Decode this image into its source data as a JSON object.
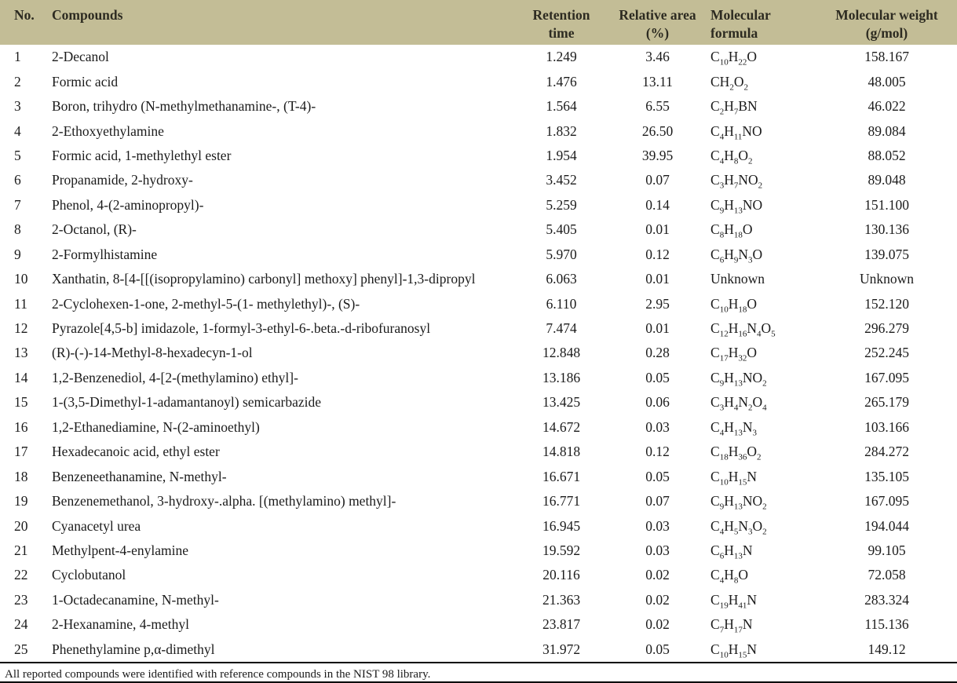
{
  "colors": {
    "header_background": "#c3bd96",
    "header_text": "#2d2b21",
    "body_text": "#1b1b1b",
    "rule": "#000000"
  },
  "footnote": "All reported compounds were identified with reference compounds in the NIST 98 library.",
  "table": {
    "columns": [
      {
        "key": "no",
        "label": "No.",
        "label_lines": [
          "No."
        ]
      },
      {
        "key": "compound",
        "label": "Compounds",
        "label_lines": [
          "Compounds"
        ]
      },
      {
        "key": "retention-time",
        "label": "Retention time",
        "label_lines": [
          "Retention",
          "time"
        ]
      },
      {
        "key": "relative-area",
        "label": "Relative area (%)",
        "label_lines": [
          "Relative area",
          "(%)"
        ]
      },
      {
        "key": "molecular-formula",
        "label": "Molecular formula",
        "label_lines": [
          "Molecular",
          "formula"
        ]
      },
      {
        "key": "molecular-weight",
        "label": "Molecular weight (g/mol)",
        "label_lines": [
          "Molecular weight",
          "(g/mol)"
        ]
      }
    ],
    "rows": [
      {
        "no": "1",
        "compound": "2-Decanol",
        "retention_time": "1.249",
        "relative_area": "3.46",
        "molecular_formula": "C10H22O",
        "molecular_weight": "158.167"
      },
      {
        "no": "2",
        "compound": "Formic acid",
        "retention_time": "1.476",
        "relative_area": "13.11",
        "molecular_formula": "CH2O2",
        "molecular_weight": "48.005"
      },
      {
        "no": "3",
        "compound": "Boron, trihydro (N-methylmethanamine-, (T-4)-",
        "retention_time": "1.564",
        "relative_area": "6.55",
        "molecular_formula": "C2H7BN",
        "molecular_weight": "46.022"
      },
      {
        "no": "4",
        "compound": "2-Ethoxyethylamine",
        "retention_time": "1.832",
        "relative_area": "26.50",
        "molecular_formula": "C4H11NO",
        "molecular_weight": "89.084"
      },
      {
        "no": "5",
        "compound": "Formic acid, 1-methylethyl ester",
        "retention_time": "1.954",
        "relative_area": "39.95",
        "molecular_formula": "C4H8O2",
        "molecular_weight": "88.052"
      },
      {
        "no": "6",
        "compound": "Propanamide, 2-hydroxy-",
        "retention_time": "3.452",
        "relative_area": "0.07",
        "molecular_formula": "C3H7NO2",
        "molecular_weight": "89.048"
      },
      {
        "no": "7",
        "compound": "Phenol, 4-(2-aminopropyl)-",
        "retention_time": "5.259",
        "relative_area": "0.14",
        "molecular_formula": "C9H13NO",
        "molecular_weight": "151.100"
      },
      {
        "no": "8",
        "compound": "2-Octanol, (R)-",
        "retention_time": "5.405",
        "relative_area": "0.01",
        "molecular_formula": "C8H18O",
        "molecular_weight": "130.136"
      },
      {
        "no": "9",
        "compound": "2-Formylhistamine",
        "retention_time": "5.970",
        "relative_area": "0.12",
        "molecular_formula": "C6H9N3O",
        "molecular_weight": "139.075"
      },
      {
        "no": "10",
        "compound": "Xanthatin, 8-[4-[[(isopropylamino) carbonyl] methoxy] phenyl]-1,3-dipropyl",
        "retention_time": "6.063",
        "relative_area": "0.01",
        "molecular_formula": "Unknown",
        "molecular_weight": "Unknown"
      },
      {
        "no": "11",
        "compound": "2-Cyclohexen-1-one, 2-methyl-5-(1- methylethyl)-, (S)-",
        "retention_time": "6.110",
        "relative_area": "2.95",
        "molecular_formula": "C10H18O",
        "molecular_weight": "152.120"
      },
      {
        "no": "12",
        "compound": "Pyrazole[4,5-b] imidazole, 1-formyl-3-ethyl-6-.beta.-d-ribofuranosyl",
        "retention_time": "7.474",
        "relative_area": "0.01",
        "molecular_formula": "C12H16N4O5",
        "molecular_weight": "296.279"
      },
      {
        "no": "13",
        "compound": "(R)-(-)-14-Methyl-8-hexadecyn-1-ol",
        "retention_time": "12.848",
        "relative_area": "0.28",
        "molecular_formula": "C17H32O",
        "molecular_weight": "252.245"
      },
      {
        "no": "14",
        "compound": "1,2-Benzenediol, 4-[2-(methylamino) ethyl]-",
        "retention_time": "13.186",
        "relative_area": "0.05",
        "molecular_formula": "C9H13NO2",
        "molecular_weight": "167.095"
      },
      {
        "no": "15",
        "compound": "1-(3,5-Dimethyl-1-adamantanoyl) semicarbazide",
        "retention_time": "13.425",
        "relative_area": "0.06",
        "molecular_formula": "C3H4N2O4",
        "molecular_weight": "265.179"
      },
      {
        "no": "16",
        "compound": "1,2-Ethanediamine, N-(2-aminoethyl)",
        "retention_time": "14.672",
        "relative_area": "0.03",
        "molecular_formula": "C4H13N3",
        "molecular_weight": "103.166"
      },
      {
        "no": "17",
        "compound": "Hexadecanoic acid, ethyl ester",
        "retention_time": "14.818",
        "relative_area": "0.12",
        "molecular_formula": "C18H36O2",
        "molecular_weight": "284.272"
      },
      {
        "no": "18",
        "compound": "Benzeneethanamine, N-methyl-",
        "retention_time": "16.671",
        "relative_area": "0.05",
        "molecular_formula": "C10H15N",
        "molecular_weight": "135.105"
      },
      {
        "no": "19",
        "compound": "Benzenemethanol, 3-hydroxy-.alpha. [(methylamino) methyl]-",
        "retention_time": "16.771",
        "relative_area": "0.07",
        "molecular_formula": "C9H13NO2",
        "molecular_weight": "167.095"
      },
      {
        "no": "20",
        "compound": "Cyanacetyl urea",
        "retention_time": "16.945",
        "relative_area": "0.03",
        "molecular_formula": "C4H5N3O2",
        "molecular_weight": "194.044"
      },
      {
        "no": "21",
        "compound": "Methylpent-4-enylamine",
        "retention_time": "19.592",
        "relative_area": "0.03",
        "molecular_formula": "C6H13N",
        "molecular_weight": "99.105"
      },
      {
        "no": "22",
        "compound": "Cyclobutanol",
        "retention_time": "20.116",
        "relative_area": "0.02",
        "molecular_formula": "C4H8O",
        "molecular_weight": "72.058"
      },
      {
        "no": "23",
        "compound": "1-Octadecanamine, N-methyl-",
        "retention_time": "21.363",
        "relative_area": "0.02",
        "molecular_formula": "C19H41N",
        "molecular_weight": "283.324"
      },
      {
        "no": "24",
        "compound": "2-Hexanamine, 4-methyl",
        "retention_time": "23.817",
        "relative_area": "0.02",
        "molecular_formula": "C7H17N",
        "molecular_weight": "115.136"
      },
      {
        "no": "25",
        "compound": "Phenethylamine p,α-dimethyl",
        "retention_time": "31.972",
        "relative_area": "0.05",
        "molecular_formula": "C10H15N",
        "molecular_weight": "149.12"
      }
    ]
  }
}
